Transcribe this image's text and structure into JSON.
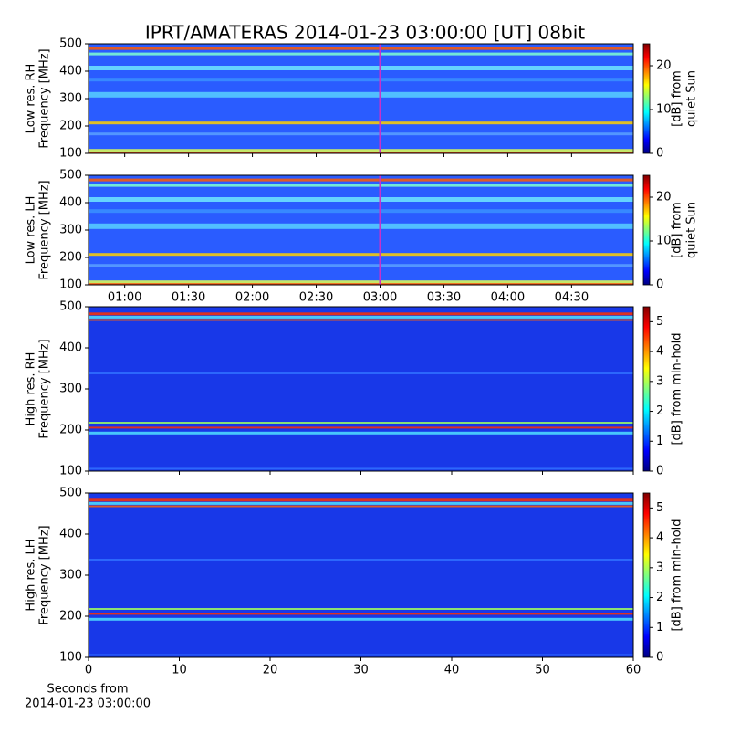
{
  "title": "IPRT/AMATERAS 2014-01-23 03:00:00 [UT]   08bit",
  "chart_data": [
    {
      "type": "spectrogram",
      "ylabel": [
        "Low res. RH",
        "Frequency [MHz]"
      ],
      "xlim": [
        43,
        299
      ],
      "xticks": [
        {
          "value": 60,
          "label": "01:00"
        },
        {
          "value": 90,
          "label": "01:30"
        },
        {
          "value": 120,
          "label": "02:00"
        },
        {
          "value": 150,
          "label": "02:30"
        },
        {
          "value": 180,
          "label": "03:00"
        },
        {
          "value": 210,
          "label": "03:30"
        },
        {
          "value": 240,
          "label": "04:00"
        },
        {
          "value": 270,
          "label": "04:30"
        }
      ],
      "xticklabels": false,
      "ylim": [
        100,
        500
      ],
      "yticks": [
        100,
        200,
        300,
        400,
        500
      ],
      "clim": [
        0,
        25
      ],
      "cticks": [
        0,
        10,
        20
      ],
      "clabel": [
        "[dB] from",
        "quiet Sun"
      ],
      "marker": 180,
      "marker_color": "#c832c8",
      "resolution": "low"
    },
    {
      "type": "spectrogram",
      "ylabel": [
        "Low res. LH",
        "Frequency [MHz]"
      ],
      "xlim": [
        43,
        299
      ],
      "xticks": [
        {
          "value": 60,
          "label": "01:00"
        },
        {
          "value": 90,
          "label": "01:30"
        },
        {
          "value": 120,
          "label": "02:00"
        },
        {
          "value": 150,
          "label": "02:30"
        },
        {
          "value": 180,
          "label": "03:00"
        },
        {
          "value": 210,
          "label": "03:30"
        },
        {
          "value": 240,
          "label": "04:00"
        },
        {
          "value": 270,
          "label": "04:30"
        }
      ],
      "ylim": [
        100,
        500
      ],
      "yticks": [
        100,
        200,
        300,
        400,
        500
      ],
      "clim": [
        0,
        25
      ],
      "cticks": [
        0,
        10,
        20
      ],
      "clabel": [
        "[dB] from",
        "quiet Sun"
      ],
      "marker": 180,
      "marker_color": "#c832c8",
      "resolution": "low"
    },
    {
      "type": "spectrogram",
      "ylabel": [
        "High res. RH",
        "Frequency [MHz]"
      ],
      "xlim": [
        0,
        60
      ],
      "xticks": [
        0,
        10,
        20,
        30,
        40,
        50,
        60
      ],
      "xticklabels": false,
      "ylim": [
        100,
        500
      ],
      "yticks": [
        100,
        200,
        300,
        400,
        500
      ],
      "clim": [
        0,
        5.5
      ],
      "cticks": [
        0,
        1,
        2,
        3,
        4,
        5
      ],
      "clabel": [
        "[dB] from min-hold"
      ],
      "resolution": "high"
    },
    {
      "type": "spectrogram",
      "ylabel": [
        "High res. LH",
        "Frequency [MHz]"
      ],
      "xlim": [
        0,
        60
      ],
      "xticks": [
        0,
        10,
        20,
        30,
        40,
        50,
        60
      ],
      "ylim": [
        100,
        500
      ],
      "yticks": [
        100,
        200,
        300,
        400,
        500
      ],
      "clim": [
        0,
        5.5
      ],
      "cticks": [
        0,
        1,
        2,
        3,
        4,
        5
      ],
      "clabel": [
        "[dB] from min-hold"
      ],
      "xlabel": [
        "Seconds from",
        "2014-01-23 03:00:00"
      ],
      "resolution": "high"
    }
  ]
}
